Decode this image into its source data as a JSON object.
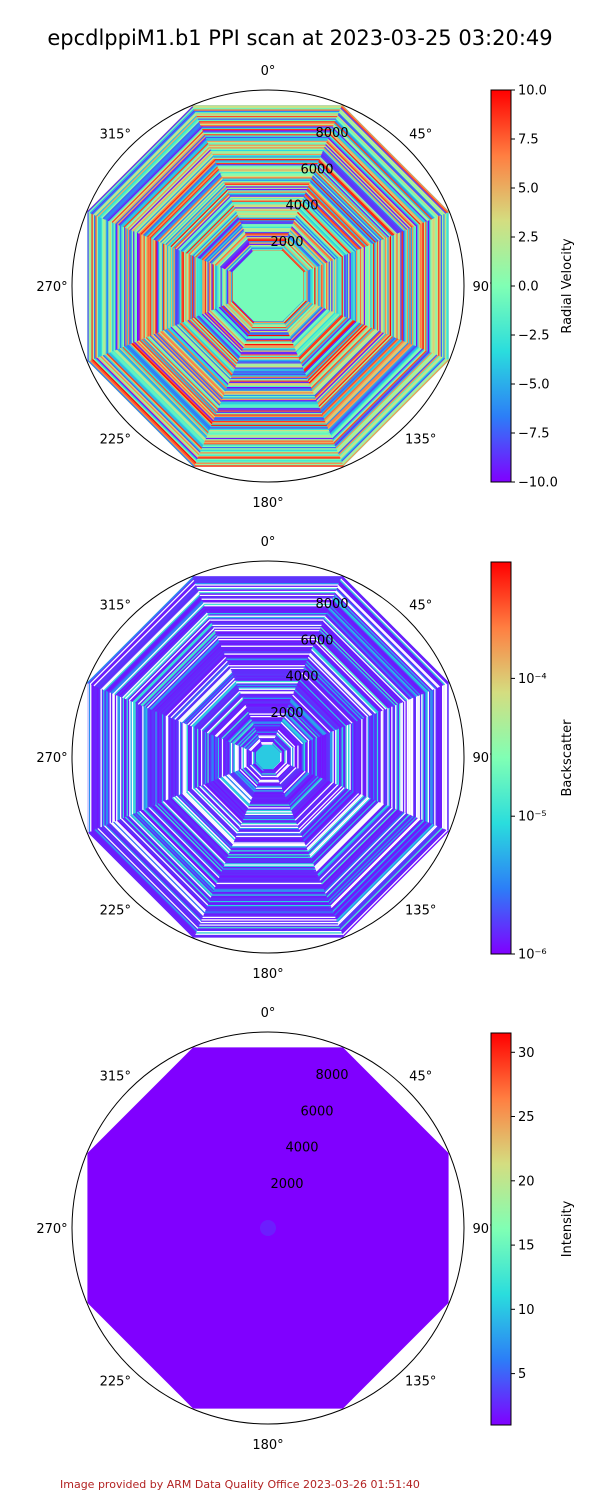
{
  "title": "epcdlppiM1.b1 PPI scan at 2023-03-25 03:20:49",
  "footer": "Image provided by ARM Data Quality Office 2023-03-26 01:51:40",
  "colors": {
    "rainbow": [
      "#8000ff",
      "#2c7ef7",
      "#2adddd",
      "#80ffb4",
      "#d4dd80",
      "#ff7e41",
      "#ff0000"
    ],
    "axis": "#000000",
    "footer": "#b22222"
  },
  "chart_data": [
    {
      "type": "heatmap",
      "projection": "polar",
      "field": "radial_velocity",
      "angle_ticks": [
        "0°",
        "45°",
        "90°",
        "135°",
        "180°",
        "225°",
        "270°",
        "315°"
      ],
      "range_ticks": [
        "2000",
        "4000",
        "6000",
        "8000"
      ],
      "range_values": [
        2000,
        4000,
        6000,
        8000
      ],
      "rlim": [
        0,
        10000
      ],
      "colorbar": {
        "label": "Radial Velocity",
        "scale": "linear",
        "ticks": [
          "10.0",
          "7.5",
          "5.0",
          "2.5",
          "0.0",
          "−2.5",
          "−5.0",
          "−7.5",
          "−10.0"
        ],
        "tick_values": [
          10,
          7.5,
          5,
          2.5,
          0,
          -2.5,
          -5,
          -7.5,
          -10
        ],
        "range": [
          -10,
          10
        ]
      },
      "pattern": "noisy"
    },
    {
      "type": "heatmap",
      "projection": "polar",
      "field": "backscatter",
      "angle_ticks": [
        "0°",
        "45°",
        "90°",
        "135°",
        "180°",
        "225°",
        "270°",
        "315°"
      ],
      "range_ticks": [
        "2000",
        "4000",
        "6000",
        "8000"
      ],
      "range_values": [
        2000,
        4000,
        6000,
        8000
      ],
      "rlim": [
        0,
        10000
      ],
      "colorbar": {
        "label": "Backscatter",
        "scale": "log",
        "ticks": [
          "10⁻⁴",
          "10⁻⁵",
          "10⁻⁶"
        ],
        "tick_values": [
          0.0001,
          1e-05,
          1e-06
        ],
        "range": [
          1e-06,
          0.0007
        ]
      },
      "pattern": "low-with-streaks"
    },
    {
      "type": "heatmap",
      "projection": "polar",
      "field": "intensity",
      "angle_ticks": [
        "0°",
        "45°",
        "90°",
        "135°",
        "180°",
        "225°",
        "270°",
        "315°"
      ],
      "range_ticks": [
        "2000",
        "4000",
        "6000",
        "8000"
      ],
      "range_values": [
        2000,
        4000,
        6000,
        8000
      ],
      "rlim": [
        0,
        10000
      ],
      "colorbar": {
        "label": "Intensity",
        "scale": "linear",
        "ticks": [
          "30",
          "25",
          "20",
          "15",
          "10",
          "5"
        ],
        "tick_values": [
          30,
          25,
          20,
          15,
          10,
          5
        ],
        "range": [
          1,
          31.5
        ]
      },
      "pattern": "uniform-low"
    }
  ]
}
